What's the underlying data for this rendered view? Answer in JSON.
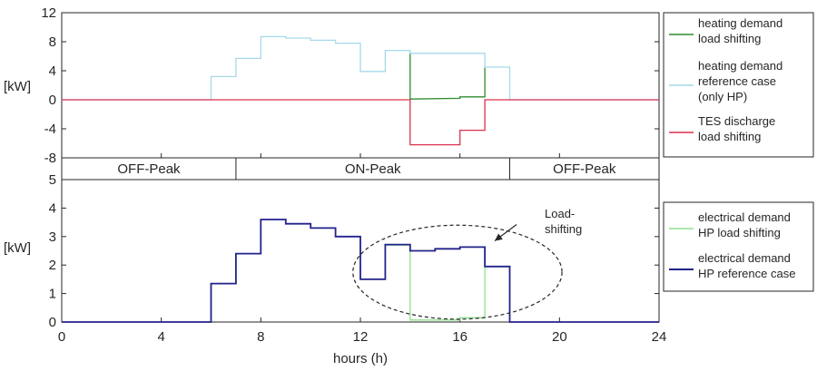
{
  "chart_data": [
    {
      "type": "line",
      "step": true,
      "ylabel": "[kW]",
      "xlim": [
        0,
        24
      ],
      "ylim": [
        -8,
        12
      ],
      "yticks": [
        12,
        8,
        4,
        0,
        -4,
        -8
      ],
      "legend_position": "right",
      "series": [
        {
          "name": "heating demand load shifting",
          "color": "#2e8b2e",
          "x": [
            14,
            14,
            16,
            16,
            17,
            17
          ],
          "y": [
            6.5,
            0.1,
            0.2,
            0.4,
            0.4,
            4.4
          ]
        },
        {
          "name": "heating demand reference case (only HP)",
          "color": "#a6d9ea",
          "x": [
            0,
            6,
            6,
            7,
            7,
            8,
            8,
            9,
            9,
            10,
            10,
            11,
            11,
            12,
            12,
            13,
            13,
            14,
            14,
            17,
            17,
            18,
            18,
            24
          ],
          "y": [
            0,
            0,
            3.2,
            3.2,
            5.7,
            5.7,
            8.7,
            8.7,
            8.5,
            8.5,
            8.2,
            8.2,
            7.8,
            7.8,
            3.9,
            3.9,
            6.8,
            6.8,
            6.4,
            6.4,
            4.5,
            4.5,
            0,
            0
          ]
        },
        {
          "name": "TES discharge load shifting",
          "color": "#d9314e",
          "x": [
            0,
            14,
            14,
            16,
            16,
            17,
            17,
            24
          ],
          "y": [
            0,
            0,
            -6.2,
            -6.2,
            -4.2,
            -4.2,
            0,
            0
          ]
        }
      ]
    },
    {
      "type": "line",
      "step": true,
      "xlabel": "hours (h)",
      "ylabel": "[kW]",
      "xlim": [
        0,
        24
      ],
      "ylim": [
        0,
        5
      ],
      "xticks": [
        0,
        4,
        8,
        12,
        16,
        20,
        24
      ],
      "yticks": [
        5,
        4,
        3,
        2,
        1,
        0
      ],
      "legend_position": "right",
      "series": [
        {
          "name": "electrical demand HP load shifting",
          "color": "#8fe08f",
          "x": [
            13,
            14,
            14,
            16,
            16,
            17,
            17,
            18
          ],
          "y": [
            2.7,
            2.7,
            0.07,
            0.07,
            0.15,
            0.15,
            1.95,
            1.95
          ]
        },
        {
          "name": "electrical demand HP reference case",
          "color": "#22228c",
          "x": [
            0,
            6,
            6,
            7,
            7,
            8,
            8,
            9,
            9,
            10,
            10,
            11,
            11,
            12,
            12,
            13,
            13,
            14,
            14,
            15,
            15,
            16,
            16,
            17,
            17,
            18,
            18,
            24
          ],
          "y": [
            0,
            0,
            1.35,
            1.35,
            2.4,
            2.4,
            3.6,
            3.6,
            3.45,
            3.45,
            3.3,
            3.3,
            3.0,
            3.0,
            1.5,
            1.5,
            2.72,
            2.72,
            2.5,
            2.5,
            2.57,
            2.57,
            2.63,
            2.63,
            1.95,
            1.95,
            0,
            0
          ]
        }
      ],
      "annotation": {
        "text": [
          "Load-",
          "shifting"
        ],
        "ellipse_center": [
          15.9,
          1.75
        ],
        "ellipse_radii": [
          4.2,
          1.65
        ],
        "arrow_to": [
          17.4,
          2.85
        ]
      }
    }
  ],
  "periods": [
    {
      "label": "OFF-Peak",
      "start": 0,
      "end": 7
    },
    {
      "label": "ON-Peak",
      "start": 7,
      "end": 18
    },
    {
      "label": "OFF-Peak",
      "start": 18,
      "end": 24
    }
  ]
}
